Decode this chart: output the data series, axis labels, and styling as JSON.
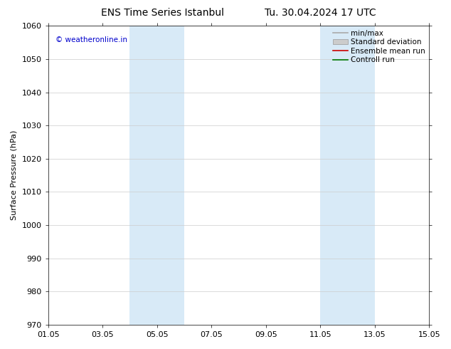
{
  "title_left": "ENS Time Series Istanbul",
  "title_right": "Tu. 30.04.2024 17 UTC",
  "ylabel": "Surface Pressure (hPa)",
  "ylim": [
    970,
    1060
  ],
  "yticks": [
    970,
    980,
    990,
    1000,
    1010,
    1020,
    1030,
    1040,
    1050,
    1060
  ],
  "xlim": [
    0,
    14
  ],
  "xtick_labels": [
    "01.05",
    "03.05",
    "05.05",
    "07.05",
    "09.05",
    "11.05",
    "13.05",
    "15.05"
  ],
  "xtick_positions": [
    0,
    2,
    4,
    6,
    8,
    10,
    12,
    14
  ],
  "shaded_bands": [
    {
      "x_start": 3,
      "x_end": 5,
      "color": "#d8eaf7"
    },
    {
      "x_start": 10,
      "x_end": 12,
      "color": "#d8eaf7"
    }
  ],
  "watermark_text": "© weatheronline.in",
  "watermark_color": "#0000cc",
  "legend_items": [
    {
      "label": "min/max",
      "color": "#aaaaaa",
      "lw": 1.2,
      "type": "line"
    },
    {
      "label": "Standard deviation",
      "color": "#cccccc",
      "lw": 5,
      "type": "band"
    },
    {
      "label": "Ensemble mean run",
      "color": "#cc0000",
      "lw": 1.2,
      "type": "line"
    },
    {
      "label": "Controll run",
      "color": "#007700",
      "lw": 1.2,
      "type": "line"
    }
  ],
  "background_color": "#ffffff",
  "grid_color": "#cccccc",
  "title_fontsize": 10,
  "label_fontsize": 8,
  "tick_fontsize": 8,
  "legend_fontsize": 7.5
}
